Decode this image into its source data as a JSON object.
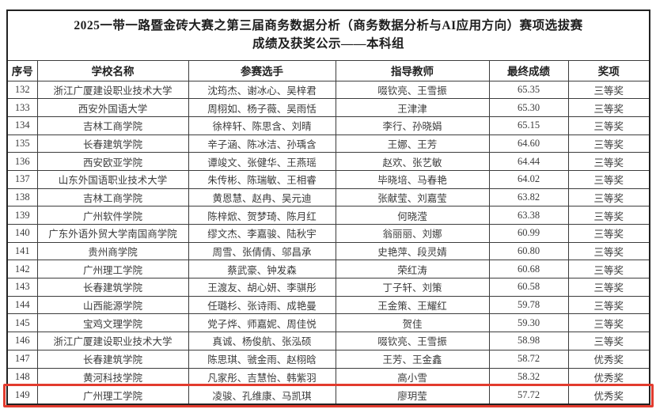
{
  "title": {
    "line1": "2025一带一路暨金砖大赛之第三届商务数据分析（商务数据分析与AI应用方向）赛项选拔赛",
    "line2": "成绩及获奖公示——本科组"
  },
  "table": {
    "columns": [
      "序号",
      "学校名称",
      "参赛选手",
      "指导教师",
      "最终成绩",
      "奖项"
    ],
    "rows": [
      {
        "no": "132",
        "school": "浙江广厦建设职业技术大学",
        "contestants": "沈筠杰、谢冰心、吴梓君",
        "instructors": "啜钦亮、王雪振",
        "score": "65.35",
        "award": "三等奖"
      },
      {
        "no": "133",
        "school": "西安外国语大学",
        "contestants": "周栩如、杨子薇、吴雨恬",
        "instructors": "王津津",
        "score": "65.30",
        "award": "三等奖"
      },
      {
        "no": "134",
        "school": "吉林工商学院",
        "contestants": "徐梓轩、陈思含、刘晴",
        "instructors": "李行、孙晓娟",
        "score": "65.15",
        "award": "三等奖"
      },
      {
        "no": "135",
        "school": "长春建筑学院",
        "contestants": "辛子涵、陈冰洁、孙瑀含",
        "instructors": "王娜、王芳",
        "score": "64.60",
        "award": "三等奖"
      },
      {
        "no": "136",
        "school": "西安欧亚学院",
        "contestants": "谭竣文、张健华、王燕瑶",
        "instructors": "赵欢、张艺敏",
        "score": "64.44",
        "award": "三等奖"
      },
      {
        "no": "137",
        "school": "山东外国语职业技术大学",
        "contestants": "朱传彬、陈瑞敏、王相睿",
        "instructors": "毕晓培、马春艳",
        "score": "64.02",
        "award": "三等奖"
      },
      {
        "no": "138",
        "school": "吉林工商学院",
        "contestants": "黄恩慧、赵冉、吴元迪",
        "instructors": "张献莹、刘嘉莹",
        "score": "63.82",
        "award": "三等奖"
      },
      {
        "no": "139",
        "school": "广州软件学院",
        "contestants": "陈梓焮、贺梦琦、陈月红",
        "instructors": "何晓滢",
        "score": "63.38",
        "award": "三等奖"
      },
      {
        "no": "140",
        "school": "广东外语外贸大学南国商学院",
        "contestants": "缪文杰、李嘉骏、陆秋宇",
        "instructors": "翁丽丽、刘娜",
        "score": "60.99",
        "award": "三等奖"
      },
      {
        "no": "141",
        "school": "贵州商学院",
        "contestants": "周雪、张倩倩、邬昌承",
        "instructors": "史艳萍、段灵婧",
        "score": "60.80",
        "award": "三等奖"
      },
      {
        "no": "142",
        "school": "广州理工学院",
        "contestants": "蔡武豪、钟发森",
        "instructors": "荣红涛",
        "score": "60.68",
        "award": "三等奖"
      },
      {
        "no": "143",
        "school": "长春建筑学院",
        "contestants": "王渡友、胡心妍、李骐彤",
        "instructors": "丁子轩、刘策",
        "score": "60.58",
        "award": "三等奖"
      },
      {
        "no": "144",
        "school": "山西能源学院",
        "contestants": "任璐杉、张诗雨、成艳曼",
        "instructors": "王金策、王耀红",
        "score": "59.78",
        "award": "三等奖"
      },
      {
        "no": "145",
        "school": "宝鸡文理学院",
        "contestants": "党子烨、师嘉妮、周佳悦",
        "instructors": "贺佳",
        "score": "59.30",
        "award": "三等奖"
      },
      {
        "no": "146",
        "school": "浙江广厦建设职业技术大学",
        "contestants": "真诚、杨俊航、张泓硕",
        "instructors": "啜钦亮、王雪振",
        "score": "58.98",
        "award": "三等奖"
      },
      {
        "no": "147",
        "school": "长春建筑学院",
        "contestants": "陈思琪、虢金雨、赵栩晗",
        "instructors": "王芳、王金鑫",
        "score": "58.72",
        "award": "优秀奖"
      },
      {
        "no": "148",
        "school": "黄河科技学院",
        "contestants": "凡家彤、吉慧怡、韩紫羽",
        "instructors": "高小雪",
        "score": "58.32",
        "award": "优秀奖"
      },
      {
        "no": "149",
        "school": "广州理工学院",
        "contestants": "凌骏、孔维康、马凯琪",
        "instructors": "廖玥莹",
        "score": "57.72",
        "award": "优秀奖"
      }
    ],
    "highlighted_row_no": "149"
  },
  "colors": {
    "highlight_border": "#e23b2e",
    "border": "#3c3c3c",
    "text": "#3b3b3b"
  }
}
